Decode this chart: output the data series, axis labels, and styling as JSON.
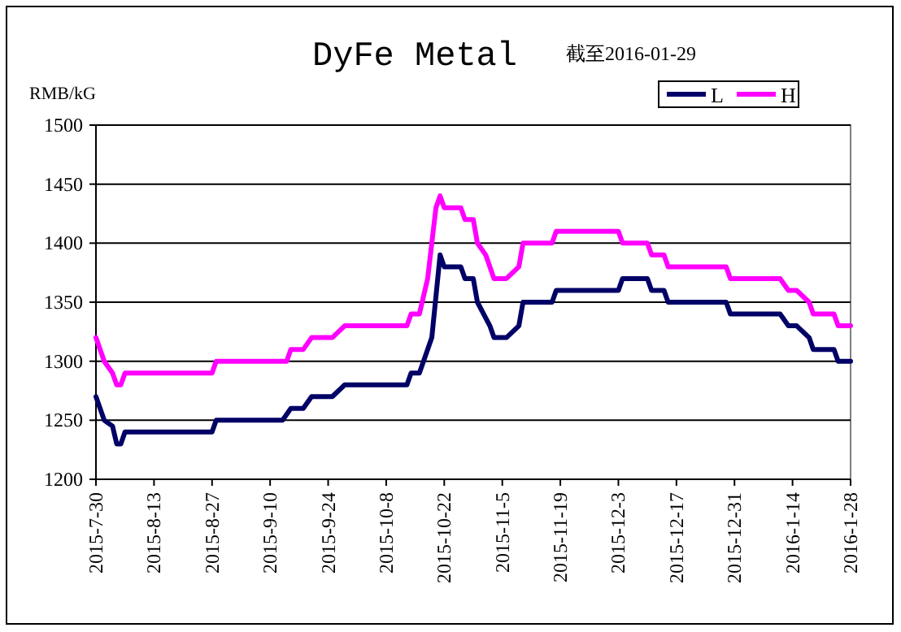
{
  "chart_data": {
    "type": "line",
    "title": "DyFe Metal",
    "subtitle": "截至2016-01-29",
    "ylabel": "RMB/kG",
    "xlim": [
      "2015-07-30",
      "2016-01-28"
    ],
    "ylim": [
      1200,
      1500
    ],
    "yticks": [
      1200,
      1250,
      1300,
      1350,
      1400,
      1450,
      1500
    ],
    "xticks": [
      {
        "value": "2015-07-30",
        "label": "2015-7-30"
      },
      {
        "value": "2015-08-13",
        "label": "2015-8-13"
      },
      {
        "value": "2015-08-27",
        "label": "2015-8-27"
      },
      {
        "value": "2015-09-10",
        "label": "2015-9-10"
      },
      {
        "value": "2015-09-24",
        "label": "2015-9-24"
      },
      {
        "value": "2015-10-08",
        "label": "2015-10-8"
      },
      {
        "value": "2015-10-22",
        "label": "2015-10-22"
      },
      {
        "value": "2015-11-05",
        "label": "2015-11-5"
      },
      {
        "value": "2015-11-19",
        "label": "2015-11-19"
      },
      {
        "value": "2015-12-03",
        "label": "2015-12-3"
      },
      {
        "value": "2015-12-17",
        "label": "2015-12-17"
      },
      {
        "value": "2015-12-31",
        "label": "2015-12-31"
      },
      {
        "value": "2016-01-14",
        "label": "2016-1-14"
      },
      {
        "value": "2016-01-28",
        "label": "2016-1-28"
      }
    ],
    "grid": "y",
    "legend": "top right",
    "marker": "none",
    "line_style": "solid",
    "series": [
      {
        "name": "L",
        "color": "#000066",
        "x": [
          "2015-07-30",
          "2015-08-01",
          "2015-08-03",
          "2015-08-04",
          "2015-08-05",
          "2015-08-06",
          "2015-08-27",
          "2015-08-28",
          "2015-09-13",
          "2015-09-15",
          "2015-09-18",
          "2015-09-20",
          "2015-09-25",
          "2015-09-28",
          "2015-10-13",
          "2015-10-14",
          "2015-10-16",
          "2015-10-17",
          "2015-10-19",
          "2015-10-21",
          "2015-10-22",
          "2015-10-26",
          "2015-10-27",
          "2015-10-29",
          "2015-10-30",
          "2015-11-02",
          "2015-11-03",
          "2015-11-06",
          "2015-11-09",
          "2015-11-10",
          "2015-11-17",
          "2015-11-18",
          "2015-12-03",
          "2015-12-04",
          "2015-12-10",
          "2015-12-11",
          "2015-12-14",
          "2015-12-15",
          "2015-12-29",
          "2015-12-30",
          "2016-01-11",
          "2016-01-13",
          "2016-01-15",
          "2016-01-18",
          "2016-01-19",
          "2016-01-24",
          "2016-01-25",
          "2016-01-28"
        ],
        "values": [
          1270,
          1250,
          1245,
          1230,
          1230,
          1240,
          1240,
          1250,
          1250,
          1260,
          1260,
          1270,
          1270,
          1280,
          1280,
          1290,
          1290,
          1300,
          1320,
          1390,
          1380,
          1380,
          1370,
          1370,
          1350,
          1330,
          1320,
          1320,
          1330,
          1350,
          1350,
          1360,
          1360,
          1370,
          1370,
          1360,
          1360,
          1350,
          1350,
          1340,
          1340,
          1330,
          1330,
          1320,
          1310,
          1310,
          1300,
          1300
        ]
      },
      {
        "name": "H",
        "color": "#ff00ff",
        "x": [
          "2015-07-30",
          "2015-08-01",
          "2015-08-03",
          "2015-08-04",
          "2015-08-05",
          "2015-08-06",
          "2015-08-27",
          "2015-08-28",
          "2015-09-14",
          "2015-09-15",
          "2015-09-18",
          "2015-09-20",
          "2015-09-25",
          "2015-09-28",
          "2015-10-13",
          "2015-10-14",
          "2015-10-16",
          "2015-10-18",
          "2015-10-20",
          "2015-10-21",
          "2015-10-22",
          "2015-10-26",
          "2015-10-27",
          "2015-10-29",
          "2015-10-30",
          "2015-11-01",
          "2015-11-03",
          "2015-11-06",
          "2015-11-09",
          "2015-11-10",
          "2015-11-17",
          "2015-11-18",
          "2015-12-03",
          "2015-12-04",
          "2015-12-10",
          "2015-12-11",
          "2015-12-14",
          "2015-12-15",
          "2015-12-29",
          "2015-12-30",
          "2016-01-11",
          "2016-01-13",
          "2016-01-15",
          "2016-01-18",
          "2016-01-19",
          "2016-01-24",
          "2016-01-25",
          "2016-01-28"
        ],
        "values": [
          1320,
          1300,
          1290,
          1280,
          1280,
          1290,
          1290,
          1300,
          1300,
          1310,
          1310,
          1320,
          1320,
          1330,
          1330,
          1340,
          1340,
          1370,
          1430,
          1440,
          1430,
          1430,
          1420,
          1420,
          1400,
          1390,
          1370,
          1370,
          1380,
          1400,
          1400,
          1410,
          1410,
          1400,
          1400,
          1390,
          1390,
          1380,
          1380,
          1370,
          1370,
          1360,
          1360,
          1350,
          1340,
          1340,
          1330,
          1330
        ]
      }
    ]
  }
}
